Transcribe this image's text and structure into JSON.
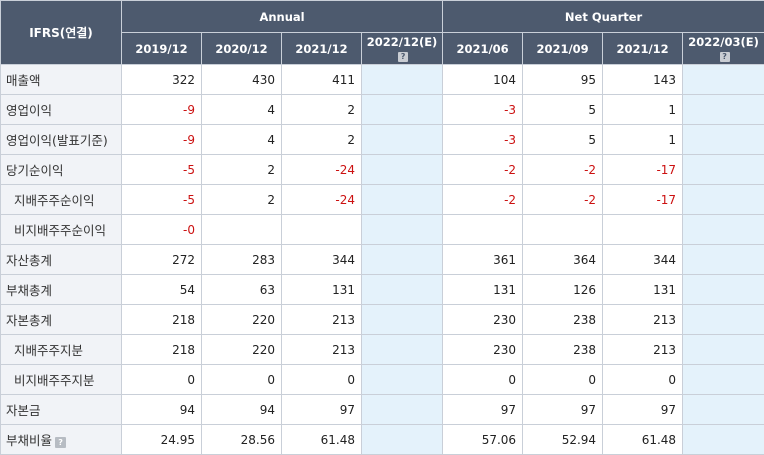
{
  "table": {
    "corner_label": "IFRS(연결)",
    "groups": {
      "annual": "Annual",
      "quarter": "Net Quarter"
    },
    "annual_periods": [
      "2019/12",
      "2020/12",
      "2021/12",
      "2022/12(E)"
    ],
    "quarter_periods": [
      "2021/06",
      "2021/09",
      "2021/12",
      "2022/03(E)"
    ],
    "rows": [
      {
        "label": "매출액",
        "annual": [
          "322",
          "430",
          "411",
          ""
        ],
        "quarter": [
          "104",
          "95",
          "143",
          ""
        ]
      },
      {
        "label": "영업이익",
        "annual": [
          "-9",
          "4",
          "2",
          ""
        ],
        "quarter": [
          "-3",
          "5",
          "1",
          ""
        ]
      },
      {
        "label": "영업이익(발표기준)",
        "annual": [
          "-9",
          "4",
          "2",
          ""
        ],
        "quarter": [
          "-3",
          "5",
          "1",
          ""
        ]
      },
      {
        "label": "당기순이익",
        "annual": [
          "-5",
          "2",
          "-24",
          ""
        ],
        "quarter": [
          "-2",
          "-2",
          "-17",
          ""
        ]
      },
      {
        "label": "지배주주순이익",
        "annual": [
          "-5",
          "2",
          "-24",
          ""
        ],
        "quarter": [
          "-2",
          "-2",
          "-17",
          ""
        ]
      },
      {
        "label": "비지배주주순이익",
        "annual": [
          "-0",
          "",
          "",
          ""
        ],
        "quarter": [
          "",
          "",
          "",
          ""
        ]
      },
      {
        "label": "자산총계",
        "annual": [
          "272",
          "283",
          "344",
          ""
        ],
        "quarter": [
          "361",
          "364",
          "344",
          ""
        ]
      },
      {
        "label": "부채총계",
        "annual": [
          "54",
          "63",
          "131",
          ""
        ],
        "quarter": [
          "131",
          "126",
          "131",
          ""
        ]
      },
      {
        "label": "자본총계",
        "annual": [
          "218",
          "220",
          "213",
          ""
        ],
        "quarter": [
          "230",
          "238",
          "213",
          ""
        ]
      },
      {
        "label": "지배주주지분",
        "annual": [
          "218",
          "220",
          "213",
          ""
        ],
        "quarter": [
          "230",
          "238",
          "213",
          ""
        ]
      },
      {
        "label": "비지배주주지분",
        "annual": [
          "0",
          "0",
          "0",
          ""
        ],
        "quarter": [
          "0",
          "0",
          "0",
          ""
        ]
      },
      {
        "label": "자본금",
        "annual": [
          "94",
          "94",
          "97",
          ""
        ],
        "quarter": [
          "97",
          "97",
          "97",
          ""
        ]
      },
      {
        "label": "부채비율",
        "annual": [
          "24.95",
          "28.56",
          "61.48",
          ""
        ],
        "quarter": [
          "57.06",
          "52.94",
          "61.48",
          ""
        ]
      }
    ]
  },
  "colors": {
    "header_bg": "#4d5a6e",
    "label_bg": "#f1f3f7",
    "estimate_bg": "#e4f2fb",
    "negative": "#cc1111"
  },
  "icons": {
    "help": "help-icon"
  }
}
